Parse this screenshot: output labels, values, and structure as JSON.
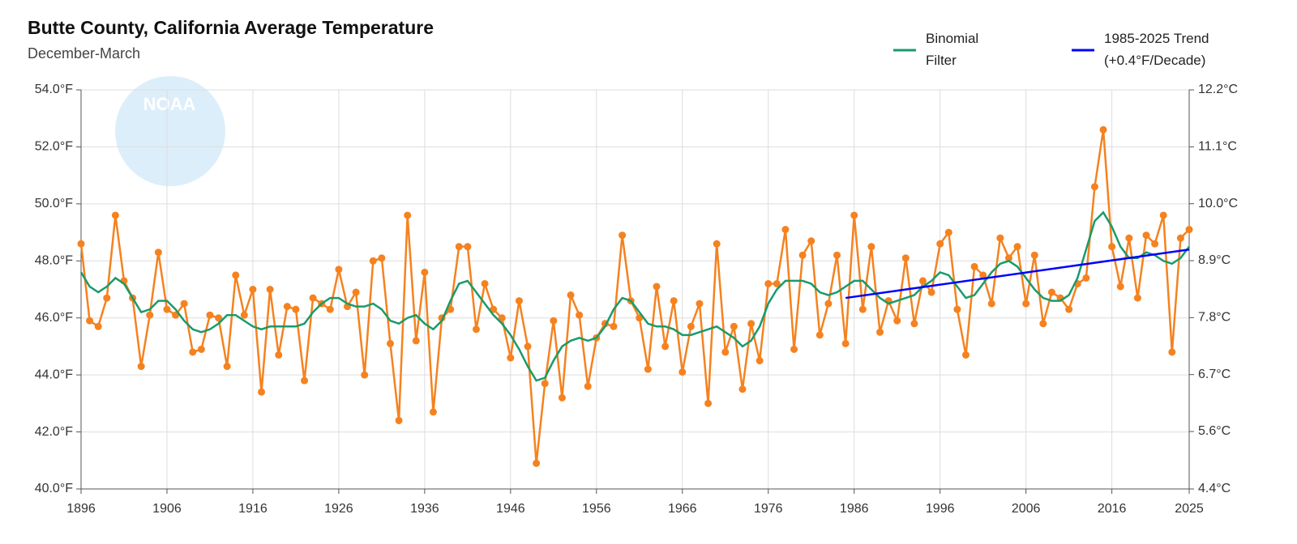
{
  "chart_data": {
    "type": "line",
    "title": "Butte County, California Average Temperature",
    "subtitle": "December-March",
    "watermark": "NOAA",
    "x": [
      1896,
      1897,
      1898,
      1899,
      1900,
      1901,
      1902,
      1903,
      1904,
      1905,
      1906,
      1907,
      1908,
      1909,
      1910,
      1911,
      1912,
      1913,
      1914,
      1915,
      1916,
      1917,
      1918,
      1919,
      1920,
      1921,
      1922,
      1923,
      1924,
      1925,
      1926,
      1927,
      1928,
      1929,
      1930,
      1931,
      1932,
      1933,
      1934,
      1935,
      1936,
      1937,
      1938,
      1939,
      1940,
      1941,
      1942,
      1943,
      1944,
      1945,
      1946,
      1947,
      1948,
      1949,
      1950,
      1951,
      1952,
      1953,
      1954,
      1955,
      1956,
      1957,
      1958,
      1959,
      1960,
      1961,
      1962,
      1963,
      1964,
      1965,
      1966,
      1967,
      1968,
      1969,
      1970,
      1971,
      1972,
      1973,
      1974,
      1975,
      1976,
      1977,
      1978,
      1979,
      1980,
      1981,
      1982,
      1983,
      1984,
      1985,
      1986,
      1987,
      1988,
      1989,
      1990,
      1991,
      1992,
      1993,
      1994,
      1995,
      1996,
      1997,
      1998,
      1999,
      2000,
      2001,
      2002,
      2003,
      2004,
      2005,
      2006,
      2007,
      2008,
      2009,
      2010,
      2011,
      2012,
      2013,
      2014,
      2015,
      2016,
      2017,
      2018,
      2019,
      2020,
      2021,
      2022,
      2023,
      2024,
      2025
    ],
    "series": [
      {
        "color": "#f5821f",
        "markers": true,
        "values": [
          48.6,
          45.9,
          45.7,
          46.7,
          49.6,
          47.3,
          46.7,
          44.3,
          46.1,
          48.3,
          46.3,
          46.1,
          46.5,
          44.8,
          44.9,
          46.1,
          46.0,
          44.3,
          47.5,
          46.1,
          47.0,
          43.4,
          47.0,
          44.7,
          46.4,
          46.3,
          43.8,
          46.7,
          46.5,
          46.3,
          47.7,
          46.4,
          46.9,
          44.0,
          48.0,
          48.1,
          45.1,
          42.4,
          49.6,
          45.2,
          47.6,
          42.7,
          46.0,
          46.3,
          48.5,
          48.5,
          45.6,
          47.2,
          46.3,
          46.0,
          44.6,
          46.6,
          45.0,
          40.9,
          43.7,
          45.9,
          43.2,
          46.8,
          46.1,
          43.6,
          45.3,
          45.8,
          45.7,
          48.9,
          46.6,
          46.0,
          44.2,
          47.1,
          45.0,
          46.6,
          44.1,
          45.7,
          46.5,
          43.0,
          48.6,
          44.8,
          45.7,
          43.5,
          45.8,
          44.5,
          47.2,
          47.2,
          49.1,
          44.9,
          48.2,
          48.7,
          45.4,
          46.5,
          48.2,
          45.1,
          49.6,
          46.3,
          48.5,
          45.5,
          46.6,
          45.9,
          48.1,
          45.8,
          47.3,
          46.9,
          48.6,
          49.0,
          46.3,
          44.7,
          47.8,
          47.5,
          46.5,
          48.8,
          48.1,
          48.5,
          46.5,
          48.2,
          45.8,
          46.9,
          46.7,
          46.3,
          47.2,
          47.4,
          50.6,
          52.6,
          48.5,
          47.1,
          48.8,
          46.7,
          48.9,
          48.6,
          49.6,
          44.8,
          48.8,
          49.1
        ]
      },
      {
        "name": "Binomial Filter",
        "color": "#1a9a6c",
        "markers": false,
        "values": [
          47.6,
          47.1,
          46.9,
          47.1,
          47.4,
          47.2,
          46.7,
          46.2,
          46.3,
          46.6,
          46.6,
          46.3,
          45.9,
          45.6,
          45.5,
          45.6,
          45.8,
          46.1,
          46.1,
          45.9,
          45.7,
          45.6,
          45.7,
          45.7,
          45.7,
          45.7,
          45.8,
          46.2,
          46.5,
          46.7,
          46.7,
          46.5,
          46.4,
          46.4,
          46.5,
          46.3,
          45.9,
          45.8,
          46.0,
          46.1,
          45.8,
          45.6,
          45.9,
          46.6,
          47.2,
          47.3,
          46.9,
          46.5,
          46.1,
          45.8,
          45.4,
          44.9,
          44.3,
          43.8,
          43.9,
          44.5,
          45.0,
          45.2,
          45.3,
          45.2,
          45.3,
          45.7,
          46.3,
          46.7,
          46.6,
          46.2,
          45.8,
          45.7,
          45.7,
          45.6,
          45.4,
          45.4,
          45.5,
          45.6,
          45.7,
          45.5,
          45.3,
          45.0,
          45.2,
          45.7,
          46.5,
          47.0,
          47.3,
          47.3,
          47.3,
          47.2,
          46.9,
          46.8,
          46.9,
          47.1,
          47.3,
          47.3,
          47.0,
          46.7,
          46.5,
          46.6,
          46.7,
          46.8,
          47.1,
          47.3,
          47.6,
          47.5,
          47.1,
          46.7,
          46.8,
          47.2,
          47.6,
          47.9,
          48.0,
          47.8,
          47.4,
          47.0,
          46.7,
          46.6,
          46.6,
          46.8,
          47.4,
          48.4,
          49.4,
          49.7,
          49.2,
          48.5,
          48.1,
          48.1,
          48.3,
          48.2,
          48.0,
          47.9,
          48.1,
          48.5
        ]
      }
    ],
    "trend": {
      "name": "1985-2025 Trend (+0.4°F/Decade)",
      "color": "#0000ff",
      "x": [
        1985,
        2025
      ],
      "values": [
        46.7,
        48.4
      ]
    },
    "xlim": [
      1896,
      2025
    ],
    "xticks": [
      1896,
      1906,
      1916,
      1926,
      1936,
      1946,
      1956,
      1966,
      1976,
      1986,
      1996,
      2006,
      2016,
      2025
    ],
    "ylim": [
      40,
      54
    ],
    "yticks": [
      {
        "value": 40,
        "label": "40.0°F"
      },
      {
        "value": 42,
        "label": "42.0°F"
      },
      {
        "value": 44,
        "label": "44.0°F"
      },
      {
        "value": 46,
        "label": "46.0°F"
      },
      {
        "value": 48,
        "label": "48.0°F"
      },
      {
        "value": 50,
        "label": "50.0°F"
      },
      {
        "value": 52,
        "label": "52.0°F"
      },
      {
        "value": 54,
        "label": "54.0°F"
      }
    ],
    "y2lim": [
      4.44,
      12.22
    ],
    "y2ticks": [
      {
        "value": 4.44,
        "label": "4.4°C"
      },
      {
        "value": 5.56,
        "label": "5.6°C"
      },
      {
        "value": 6.67,
        "label": "6.7°C"
      },
      {
        "value": 7.78,
        "label": "7.8°C"
      },
      {
        "value": 8.89,
        "label": "8.9°C"
      },
      {
        "value": 10,
        "label": "10.0°C"
      },
      {
        "value": 11.11,
        "label": "11.1°C"
      },
      {
        "value": 12.22,
        "label": "12.2°C"
      }
    ],
    "grid": true
  }
}
